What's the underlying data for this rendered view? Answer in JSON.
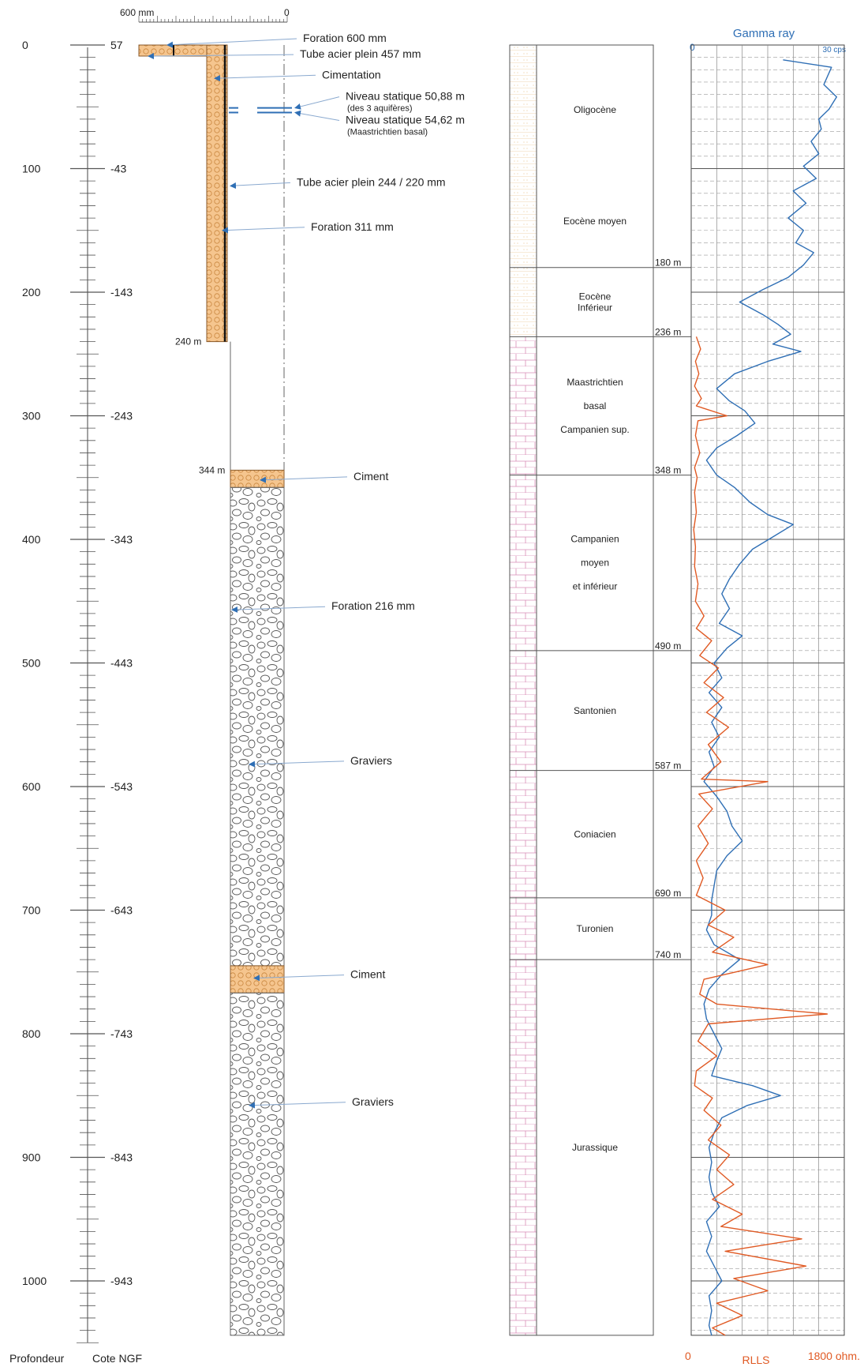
{
  "depth_scale": {
    "caption_depth": "Profondeur",
    "caption_ngf": "Cote NGF",
    "ticks": [
      {
        "depth": "0",
        "ngf": "57",
        "d": 0
      },
      {
        "depth": "100",
        "ngf": "-43",
        "d": 100
      },
      {
        "depth": "200",
        "ngf": "-143",
        "d": 200
      },
      {
        "depth": "300",
        "ngf": "-243",
        "d": 300
      },
      {
        "depth": "400",
        "ngf": "-343",
        "d": 400
      },
      {
        "depth": "500",
        "ngf": "-443",
        "d": 500
      },
      {
        "depth": "600",
        "ngf": "-543",
        "d": 600
      },
      {
        "depth": "700",
        "ngf": "-643",
        "d": 700
      },
      {
        "depth": "800",
        "ngf": "-743",
        "d": 800
      },
      {
        "depth": "900",
        "ngf": "-843",
        "d": 900
      },
      {
        "depth": "1000",
        "ngf": "-943",
        "d": 1000
      }
    ]
  },
  "diameter_scale": {
    "left": "600 mm",
    "right": "0"
  },
  "well": {
    "depth_labels": [
      {
        "text": "240 m",
        "d": 240
      },
      {
        "text": "344 m",
        "d": 344
      }
    ],
    "annotations": [
      {
        "text": "Foration 600 mm",
        "d": 0
      },
      {
        "text": "Tube acier plein 457 mm",
        "d": 9
      },
      {
        "text": "Cimentation",
        "d": 27
      },
      {
        "text": "Niveau statique 50,88 m",
        "sub": "(des 3 aquifères)",
        "d": 50.88
      },
      {
        "text": "Niveau statique 54,62 m",
        "sub": "(Maastrichtien basal)",
        "d": 54.62
      },
      {
        "text": "Tube acier plein 244 / 220  mm",
        "d": 114
      },
      {
        "text": "Foration 311 mm",
        "d": 150
      },
      {
        "text": "Ciment",
        "d": 352
      },
      {
        "text": "Foration 216 mm",
        "d": 457
      },
      {
        "text": "Graviers",
        "d": 582
      },
      {
        "text": "Ciment",
        "d": 755
      },
      {
        "text": "Graviers",
        "d": 858
      }
    ]
  },
  "stratigraphy": {
    "units": [
      {
        "lines": [
          "Oligocène"
        ],
        "top": 0,
        "bottom": 105
      },
      {
        "lines": [
          "Eocène moyen"
        ],
        "top": 105,
        "bottom": 180
      },
      {
        "lines": [
          "Eocène",
          "Inférieur"
        ],
        "top": 180,
        "bottom": 236
      },
      {
        "lines": [
          "Maastrichtien",
          "basal",
          "Campanien sup."
        ],
        "top": 236,
        "bottom": 348
      },
      {
        "lines": [
          "Campanien",
          "moyen",
          "et inférieur"
        ],
        "top": 348,
        "bottom": 490
      },
      {
        "lines": [
          "Santonien"
        ],
        "top": 490,
        "bottom": 587
      },
      {
        "lines": [
          "Coniacien"
        ],
        "top": 587,
        "bottom": 690
      },
      {
        "lines": [
          "Turonien"
        ],
        "top": 690,
        "bottom": 740
      },
      {
        "lines": [
          "Jurassique"
        ],
        "top": 740,
        "bottom": 1044
      }
    ],
    "boundaries": [
      {
        "text": "180 m",
        "d": 180
      },
      {
        "text": "236 m",
        "d": 236
      },
      {
        "text": "348 m",
        "d": 348
      },
      {
        "text": "490 m",
        "d": 490
      },
      {
        "text": "587 m",
        "d": 587
      },
      {
        "text": "690 m",
        "d": 690
      },
      {
        "text": "740 m",
        "d": 740
      }
    ]
  },
  "chart_data": {
    "type": "line",
    "title": "Gamma ray",
    "top_axis": {
      "min_label": "0",
      "max_label": "30 cps"
    },
    "bottom_axis": {
      "min_label": "0",
      "label": "RLLS",
      "max_label": "1800 ohm."
    },
    "ylim": [
      0,
      1050
    ],
    "grid": true,
    "series": [
      {
        "name": "Gamma ray",
        "color": "#2f6fb5",
        "xlim": [
          0,
          30
        ],
        "points": [
          [
            18,
            12
          ],
          [
            27.5,
            18
          ],
          [
            26,
            32
          ],
          [
            28.5,
            42
          ],
          [
            27,
            52
          ],
          [
            25,
            60
          ],
          [
            25.5,
            68
          ],
          [
            23.5,
            78
          ],
          [
            25,
            88
          ],
          [
            22,
            98
          ],
          [
            24.5,
            108
          ],
          [
            20,
            118
          ],
          [
            22.5,
            128
          ],
          [
            19,
            140
          ],
          [
            22,
            150
          ],
          [
            20.5,
            160
          ],
          [
            24,
            168
          ],
          [
            22,
            178
          ],
          [
            19,
            188
          ],
          [
            14,
            198
          ],
          [
            9.5,
            208
          ],
          [
            14,
            218
          ],
          [
            17,
            226
          ],
          [
            19.5,
            234
          ],
          [
            16,
            242
          ],
          [
            21.5,
            248
          ],
          [
            15,
            256
          ],
          [
            8.5,
            266
          ],
          [
            5,
            278
          ],
          [
            7.5,
            288
          ],
          [
            10.5,
            296
          ],
          [
            12.5,
            306
          ],
          [
            9,
            316
          ],
          [
            5,
            326
          ],
          [
            3,
            336
          ],
          [
            5,
            348
          ],
          [
            8.5,
            358
          ],
          [
            11.5,
            370
          ],
          [
            15,
            380
          ],
          [
            20,
            388
          ],
          [
            16,
            398
          ],
          [
            12,
            408
          ],
          [
            9.5,
            420
          ],
          [
            7.5,
            432
          ],
          [
            6,
            444
          ],
          [
            7.5,
            456
          ],
          [
            5.5,
            468
          ],
          [
            10,
            478
          ],
          [
            7,
            488
          ],
          [
            4.5,
            500
          ],
          [
            6,
            512
          ],
          [
            3.5,
            524
          ],
          [
            6,
            536
          ],
          [
            4,
            548
          ],
          [
            5.5,
            560
          ],
          [
            3.5,
            572
          ],
          [
            4.5,
            584
          ],
          [
            2.5,
            596
          ],
          [
            5,
            608
          ],
          [
            7,
            620
          ],
          [
            8,
            632
          ],
          [
            10,
            644
          ],
          [
            7,
            656
          ],
          [
            5,
            668
          ],
          [
            4.5,
            680
          ],
          [
            4,
            692
          ],
          [
            4,
            704
          ],
          [
            3,
            716
          ],
          [
            4.5,
            728
          ],
          [
            9.5,
            740
          ],
          [
            6,
            752
          ],
          [
            3.5,
            764
          ],
          [
            2.5,
            776
          ],
          [
            3,
            788
          ],
          [
            4.5,
            800
          ],
          [
            6,
            812
          ],
          [
            5,
            822
          ],
          [
            4,
            834
          ],
          [
            12,
            842
          ],
          [
            17.5,
            850
          ],
          [
            11,
            858
          ],
          [
            6,
            868
          ],
          [
            4.5,
            880
          ],
          [
            3.5,
            892
          ],
          [
            4,
            904
          ],
          [
            3.5,
            916
          ],
          [
            4,
            928
          ],
          [
            5.5,
            940
          ],
          [
            3,
            952
          ],
          [
            4,
            964
          ],
          [
            3,
            976
          ],
          [
            4.5,
            988
          ],
          [
            6,
            1000
          ],
          [
            3.5,
            1012
          ],
          [
            4,
            1024
          ],
          [
            3.5,
            1036
          ],
          [
            4,
            1044
          ]
        ]
      },
      {
        "name": "RLLS",
        "color": "#e05a24",
        "xlim": [
          0,
          1800
        ],
        "points": [
          [
            60,
            236
          ],
          [
            110,
            246
          ],
          [
            50,
            256
          ],
          [
            90,
            266
          ],
          [
            40,
            276
          ],
          [
            120,
            286
          ],
          [
            60,
            292
          ],
          [
            420,
            300
          ],
          [
            80,
            304
          ],
          [
            50,
            316
          ],
          [
            100,
            330
          ],
          [
            40,
            342
          ],
          [
            70,
            350
          ],
          [
            40,
            362
          ],
          [
            60,
            378
          ],
          [
            30,
            392
          ],
          [
            50,
            406
          ],
          [
            40,
            422
          ],
          [
            80,
            436
          ],
          [
            50,
            450
          ],
          [
            150,
            462
          ],
          [
            60,
            472
          ],
          [
            240,
            482
          ],
          [
            100,
            494
          ],
          [
            320,
            504
          ],
          [
            150,
            516
          ],
          [
            380,
            528
          ],
          [
            180,
            540
          ],
          [
            440,
            552
          ],
          [
            200,
            566
          ],
          [
            350,
            580
          ],
          [
            120,
            594
          ],
          [
            900,
            596
          ],
          [
            90,
            606
          ],
          [
            250,
            618
          ],
          [
            80,
            632
          ],
          [
            200,
            646
          ],
          [
            60,
            660
          ],
          [
            140,
            674
          ],
          [
            60,
            688
          ],
          [
            400,
            700
          ],
          [
            200,
            712
          ],
          [
            500,
            722
          ],
          [
            250,
            734
          ],
          [
            900,
            744
          ],
          [
            150,
            756
          ],
          [
            100,
            768
          ],
          [
            300,
            776
          ],
          [
            1600,
            784
          ],
          [
            200,
            792
          ],
          [
            80,
            806
          ],
          [
            300,
            818
          ],
          [
            60,
            830
          ],
          [
            40,
            842
          ],
          [
            250,
            852
          ],
          [
            150,
            862
          ],
          [
            350,
            874
          ],
          [
            200,
            886
          ],
          [
            450,
            898
          ],
          [
            300,
            910
          ],
          [
            500,
            922
          ],
          [
            250,
            934
          ],
          [
            600,
            946
          ],
          [
            350,
            956
          ],
          [
            1300,
            966
          ],
          [
            400,
            976
          ],
          [
            1350,
            988
          ],
          [
            500,
            998
          ],
          [
            900,
            1008
          ],
          [
            300,
            1018
          ],
          [
            600,
            1028
          ],
          [
            250,
            1038
          ],
          [
            400,
            1044
          ]
        ]
      }
    ]
  }
}
